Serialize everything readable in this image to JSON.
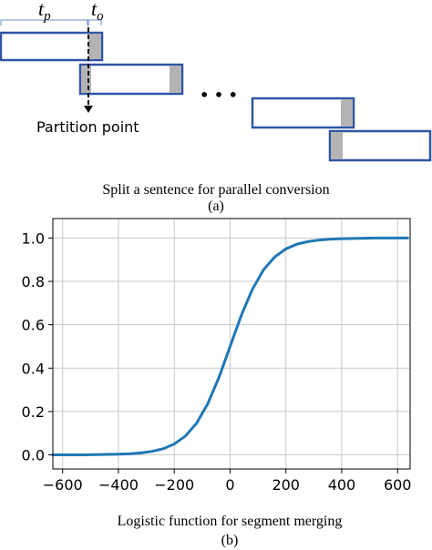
{
  "diagram": {
    "t_p": {
      "main": "t",
      "subscript": "p"
    },
    "t_o": {
      "main": "t",
      "subscript": "o"
    },
    "ellipsis": "• • •",
    "partition_label": "Partition point",
    "caption": "Split a sentence for parallel conversion",
    "panel": "(a)"
  },
  "chart_data": {
    "type": "line",
    "xlabel": "Logistic function for segment merging",
    "panel": "(b)",
    "x": [
      -640,
      -600,
      -560,
      -520,
      -480,
      -440,
      -400,
      -360,
      -320,
      -280,
      -240,
      -200,
      -160,
      -120,
      -80,
      -40,
      0,
      40,
      80,
      120,
      160,
      200,
      240,
      280,
      320,
      360,
      400,
      440,
      480,
      520,
      560,
      600,
      640
    ],
    "series": [
      {
        "color": "#1f77b4",
        "values": [
          0.0,
          0.0,
          0.0,
          0.0,
          0.001,
          0.002,
          0.003,
          0.005,
          0.009,
          0.016,
          0.028,
          0.05,
          0.087,
          0.146,
          0.236,
          0.357,
          0.5,
          0.643,
          0.764,
          0.854,
          0.913,
          0.95,
          0.972,
          0.984,
          0.991,
          0.995,
          0.997,
          0.998,
          0.999,
          1.0,
          1.0,
          1.0,
          1.0
        ]
      }
    ],
    "xlim": [
      -635,
      645
    ],
    "ylim": [
      -0.065,
      1.09
    ],
    "xticks": [
      {
        "value": -600,
        "label": "−600"
      },
      {
        "value": -400,
        "label": "−400"
      },
      {
        "value": -200,
        "label": "−200"
      },
      0,
      200,
      400,
      600
    ],
    "yticks": [
      {
        "value": 0,
        "label": "0.0"
      },
      0.2,
      0.4,
      0.6,
      0.8,
      {
        "value": 1,
        "label": "1.0"
      }
    ],
    "grid": true
  }
}
